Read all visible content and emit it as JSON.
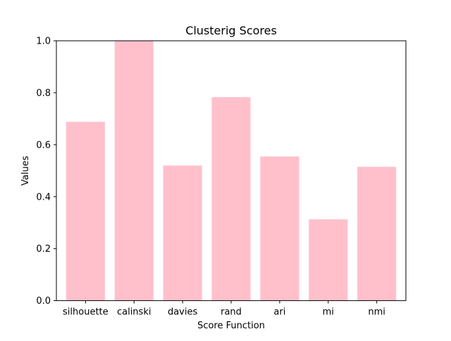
{
  "chart_data": {
    "type": "bar",
    "title": "Clusterig Scores",
    "xlabel": "Score Function",
    "ylabel": "Values",
    "categories": [
      "silhouette",
      "calinski",
      "davies",
      "rand",
      "ari",
      "mi",
      "nmi"
    ],
    "values": [
      0.688,
      1.0,
      0.52,
      0.783,
      0.555,
      0.313,
      0.515
    ],
    "ylim": [
      0,
      1.0
    ],
    "yticks": [
      0.0,
      0.2,
      0.4,
      0.6,
      0.8,
      1.0
    ],
    "ytick_labels": [
      "0.0",
      "0.2",
      "0.4",
      "0.6",
      "0.8",
      "1.0"
    ],
    "bar_color": "#ffc0cb",
    "grid": false,
    "legend": false
  }
}
